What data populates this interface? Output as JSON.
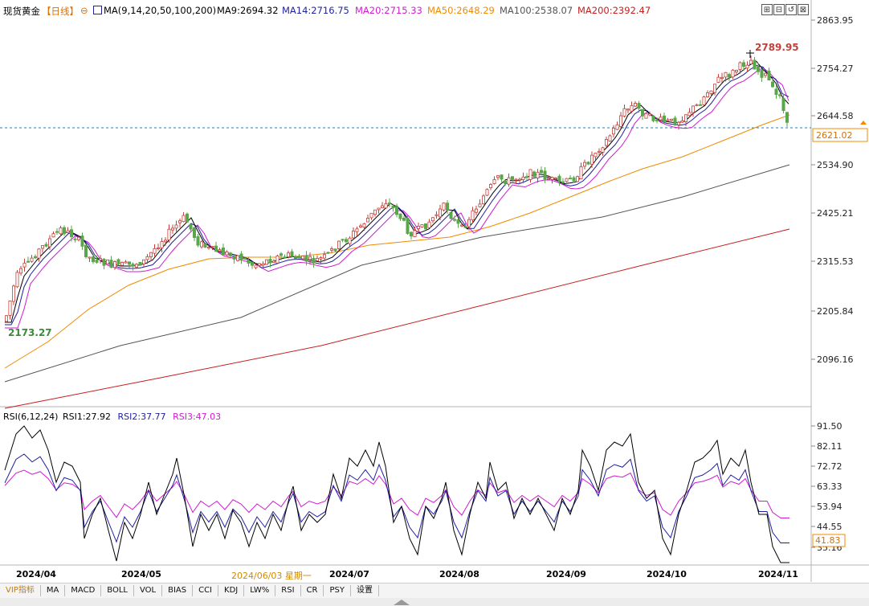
{
  "header": {
    "instrument": "现货黄金",
    "period": "【日线】",
    "ma_label": "MA(9,14,20,50,100,200)",
    "ma9": "MA9:2694.32",
    "ma14": "MA14:2716.75",
    "ma20": "MA20:2715.33",
    "ma50": "MA50:2648.29",
    "ma100": "MA100:2538.07",
    "ma200": "MA200:2392.47"
  },
  "window_buttons": [
    "⊞",
    "⊟",
    "↺",
    "⊠"
  ],
  "price_axis": [
    "2863.95",
    "2754.27",
    "2644.58",
    "2534.90",
    "2425.21",
    "2315.53",
    "2205.84",
    "2096.16"
  ],
  "current_price_label": "2621.02",
  "high_label": "2789.95",
  "low_label": "2173.27",
  "rsi_header": {
    "title": "RSI(6,12,24)",
    "rsi1": "RSI1:27.92",
    "rsi2": "RSI2:37.77",
    "rsi3": "RSI3:47.03"
  },
  "rsi_axis": [
    "91.50",
    "82.11",
    "72.72",
    "63.33",
    "53.94",
    "44.55",
    "35.16"
  ],
  "rsi_current_label": "41.83",
  "date_axis": [
    "2024/04",
    "2024/05",
    "2024/07",
    "2024/08",
    "2024/09",
    "2024/10",
    "2024/11"
  ],
  "date_cursor": "2024/06/03 星期一",
  "toolbar": [
    "VIP指标",
    "MA",
    "MACD",
    "BOLL",
    "VOL",
    "BIAS",
    "CCI",
    "KDJ",
    "LW%",
    "RSI",
    "CR",
    "PSY",
    "设置"
  ],
  "colors": {
    "up": "#c2413b",
    "down": "#5aa64a",
    "ma9": "#000000",
    "ma14": "#1f1fa0",
    "ma20": "#d11bd1",
    "ma50": "#f08a00",
    "ma100": "#555555",
    "ma200": "#c81e1e",
    "rsi1": "#000000",
    "rsi2": "#1f1fa0",
    "rsi3": "#d11bd1"
  }
}
